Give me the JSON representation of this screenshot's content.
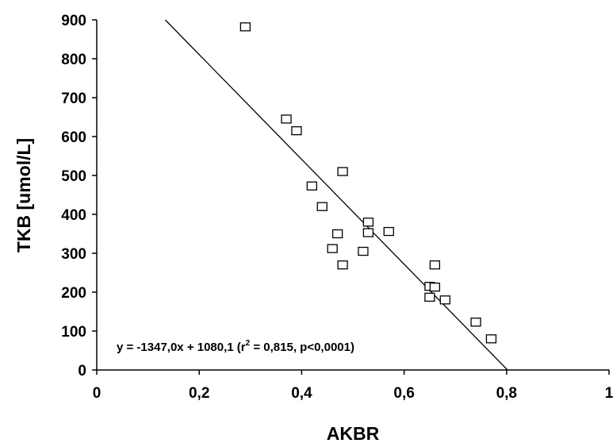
{
  "chart_data": {
    "type": "scatter",
    "title": "",
    "xlabel": "AKBR",
    "ylabel": "TKB [umol/L]",
    "xlim": [
      0,
      1
    ],
    "ylim": [
      0,
      900
    ],
    "x_ticks": [
      "0",
      "0,2",
      "0,4",
      "0,6",
      "0,8",
      "1"
    ],
    "y_ticks": [
      "0",
      "100",
      "200",
      "300",
      "400",
      "500",
      "600",
      "700",
      "800",
      "900"
    ],
    "grid": false,
    "marker": "open-square",
    "series": [
      {
        "x": [
          0.29,
          0.37,
          0.39,
          0.42,
          0.44,
          0.46,
          0.47,
          0.48,
          0.48,
          0.52,
          0.53,
          0.53,
          0.57,
          0.65,
          0.65,
          0.66,
          0.66,
          0.68,
          0.74,
          0.77
        ],
        "y": [
          882,
          645,
          615,
          473,
          420,
          312,
          350,
          510,
          270,
          305,
          380,
          353,
          356,
          215,
          187,
          270,
          213,
          180,
          123,
          80
        ]
      }
    ],
    "regression": {
      "slope": -1347.0,
      "intercept": 1080.1
    },
    "equation": {
      "prefix": "y = -1347,0x + 1080,1 (r",
      "superscript": "2",
      "suffix": " = 0,815, p<0,0001)"
    }
  }
}
